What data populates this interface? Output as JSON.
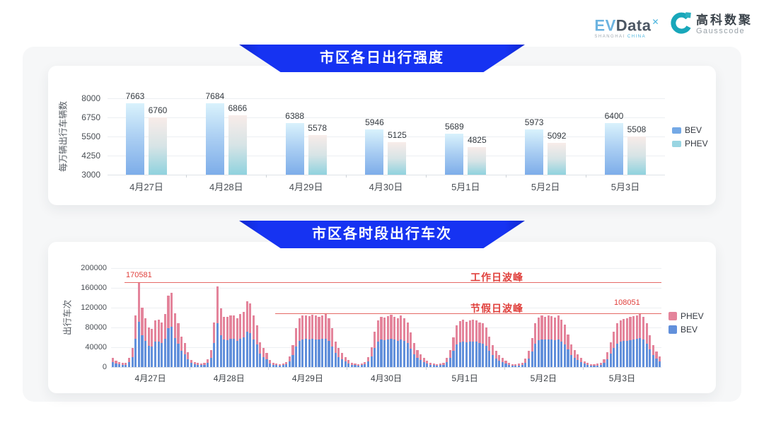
{
  "header": {
    "evdata": {
      "ev": "EV",
      "data": "Data",
      "sup": "✕",
      "sub_left": "SHANGHAI",
      "sub_right": "CHINA"
    },
    "gausscode": {
      "cn": "高科数聚",
      "en": "Gausscode"
    }
  },
  "colors": {
    "banner_blue": "#1633f2",
    "bev_blue": "#6290db",
    "phev_pink": "#e4849b",
    "annotation_red": "#e0413d",
    "grid_line": "#eceff2",
    "axis_line": "#dfe3e8"
  },
  "chart_data": [
    {
      "type": "bar",
      "title": "市区各日出行强度",
      "ylabel": "每万辆出行车辆数",
      "ylim": [
        3000,
        8000
      ],
      "yticks": [
        3000,
        4250,
        5500,
        6750,
        8000
      ],
      "grid": true,
      "legend_position": "right",
      "categories": [
        "4月27日",
        "4月28日",
        "4月29日",
        "4月30日",
        "5月1日",
        "5月2日",
        "5月3日"
      ],
      "series": [
        {
          "name": "BEV",
          "values": [
            7663,
            7684,
            6388,
            5946,
            5689,
            5973,
            6400
          ],
          "gradient": [
            "#d9f2fc",
            "#a9cdf2",
            "#7dade9"
          ],
          "swatch": "#74a9e6"
        },
        {
          "name": "PHEV",
          "values": [
            6760,
            6866,
            5578,
            5125,
            4825,
            5092,
            5508
          ],
          "gradient": [
            "#f8ece9",
            "#d7e4e6",
            "#8fd2de"
          ],
          "swatch": "#99d5e2"
        }
      ]
    },
    {
      "type": "stacked-bar",
      "title": "市区各时段出行车次",
      "ylabel": "出行车次",
      "ylim": [
        0,
        200000
      ],
      "yticks": [
        0,
        40000,
        80000,
        120000,
        160000,
        200000
      ],
      "grid": true,
      "legend_position": "right",
      "hours_per_day": 24,
      "categories": [
        "4月27日",
        "4月28日",
        "4月29日",
        "4月30日",
        "5月1日",
        "5月2日",
        "5月3日"
      ],
      "legend_order": [
        "PHEV",
        "BEV"
      ],
      "series": [
        {
          "name": "BEV",
          "color": "#6290db",
          "values_by_day": [
            [
              9700,
              7000,
              5400,
              4300,
              4900,
              9700,
              20500,
              56700,
              92100,
              64800,
              53500,
              43200,
              41600,
              51300,
              51800,
              48600,
              57800,
              78300,
              81000,
              58300,
              47500,
              33500,
              25900,
              16200
            ],
            [
              8100,
              5400,
              4300,
              3800,
              4300,
              8600,
              18900,
              48600,
              88000,
              63700,
              55100,
              54500,
              56700,
              56700,
              52900,
              57800,
              60500,
              71800,
              69100,
              56200,
              45400,
              27000,
              20500,
              15100
            ],
            [
              7600,
              4900,
              3800,
              3200,
              3800,
              5400,
              11900,
              24300,
              42100,
              52900,
              56200,
              56700,
              55600,
              57200,
              56200,
              55100,
              56700,
              57800,
              52900,
              42100,
              28100,
              20500,
              15100,
              10800
            ],
            [
              7600,
              4900,
              3800,
              3200,
              3800,
              5400,
              10800,
              21600,
              38900,
              51300,
              55100,
              54000,
              55600,
              57200,
              55100,
              53500,
              56200,
              52900,
              48600,
              37800,
              25900,
              18900,
              14000,
              9700
            ],
            [
              7000,
              4900,
              3800,
              3200,
              3800,
              4900,
              9700,
              18900,
              32400,
              45900,
              50200,
              51800,
              49700,
              51300,
              51800,
              50800,
              48600,
              47500,
              43200,
              33500,
              24300,
              17800,
              13500,
              9700
            ],
            [
              7000,
              4300,
              3200,
              3000,
              3500,
              4900,
              9200,
              17800,
              31300,
              47500,
              54000,
              56200,
              55100,
              56200,
              55600,
              54000,
              56200,
              51800,
              46400,
              35600,
              24800,
              18400,
              14000,
              9700
            ],
            [
              6500,
              4300,
              3200,
              3000,
              3500,
              4900,
              8600,
              16200,
              27000,
              38900,
              47500,
              51300,
              52400,
              53500,
              54500,
              55600,
              56700,
              58300,
              55100,
              47500,
              35100,
              24300,
              17300,
              11900
            ]
          ]
        },
        {
          "name": "PHEV",
          "color": "#e4849b",
          "values_by_day": [
            [
              8300,
              6000,
              4600,
              3700,
              4100,
              8300,
              17500,
              48300,
              78481,
              55200,
              45500,
              36800,
              35400,
              43700,
              44200,
              41400,
              49200,
              66700,
              69000,
              49700,
              40500,
              28500,
              22100,
              13800
            ],
            [
              6900,
              4600,
              3700,
              3200,
              3700,
              7400,
              16100,
              41400,
              75000,
              54300,
              46900,
              46500,
              48300,
              48300,
              45100,
              49200,
              51500,
              61200,
              58900,
              47800,
              38600,
              23000,
              17500,
              12900
            ],
            [
              6400,
              4100,
              3200,
              2800,
              3200,
              4600,
              10100,
              20700,
              35900,
              45100,
              47800,
              48300,
              47400,
              48800,
              47800,
              46900,
              48300,
              49200,
              45100,
              35900,
              23900,
              17500,
              12900,
              9200
            ],
            [
              6400,
              4100,
              3200,
              2800,
              3200,
              4600,
              9200,
              18400,
              33100,
              43700,
              46900,
              46000,
              47400,
              48800,
              46900,
              45500,
              47800,
              45100,
              41400,
              32200,
              22100,
              16100,
              12000,
              8300
            ],
            [
              6000,
              4100,
              3200,
              2800,
              3200,
              4100,
              8300,
              16100,
              27600,
              39100,
              42800,
              44200,
              42300,
              43700,
              44200,
              43200,
              41400,
              40500,
              36800,
              28500,
              20700,
              15200,
              11500,
              8300
            ],
            [
              6000,
              3700,
              2800,
              2500,
              3000,
              4100,
              7800,
              15200,
              26700,
              40500,
              46000,
              47800,
              46900,
              47800,
              47400,
              46000,
              47800,
              44200,
              39600,
              30400,
              21200,
              15600,
              12000,
              8300
            ],
            [
              5500,
              3700,
              2800,
              2500,
              3000,
              4100,
              7400,
              13800,
              23000,
              33100,
              40500,
              43700,
              44600,
              45500,
              46500,
              47400,
              48300,
              49751,
              46900,
              40500,
              29900,
              20700,
              14700,
              10100
            ]
          ]
        }
      ],
      "annotations": [
        {
          "label": "工作日波峰",
          "value": 170581,
          "value_label": "170581",
          "start_hour_index": 4
        },
        {
          "label": "节假日波峰",
          "value": 108051,
          "value_label": "108051",
          "start_hour_index": 50
        }
      ]
    }
  ]
}
